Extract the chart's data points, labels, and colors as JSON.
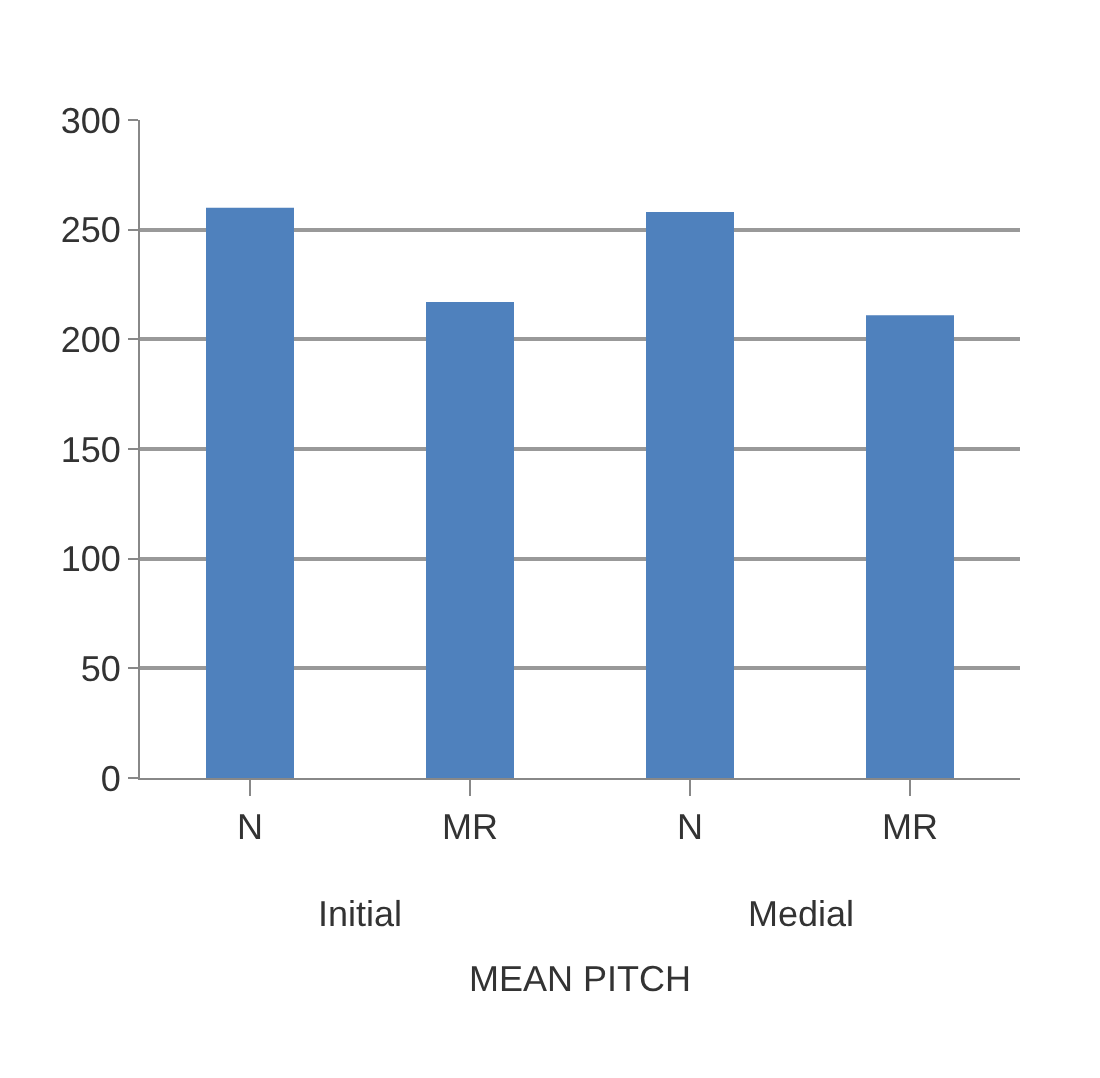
{
  "chart_data": {
    "type": "bar",
    "categories": [
      "N",
      "MR",
      "N",
      "MR"
    ],
    "values": [
      260,
      217,
      258,
      211
    ],
    "color": "#4f81bd",
    "ylim": [
      0,
      300
    ],
    "yticks": [
      0,
      50,
      100,
      150,
      200,
      250,
      300
    ],
    "grid": "y",
    "legend": false,
    "xlabel": "MEAN PITCH",
    "annotations": [
      "Initial",
      "Medial"
    ]
  }
}
